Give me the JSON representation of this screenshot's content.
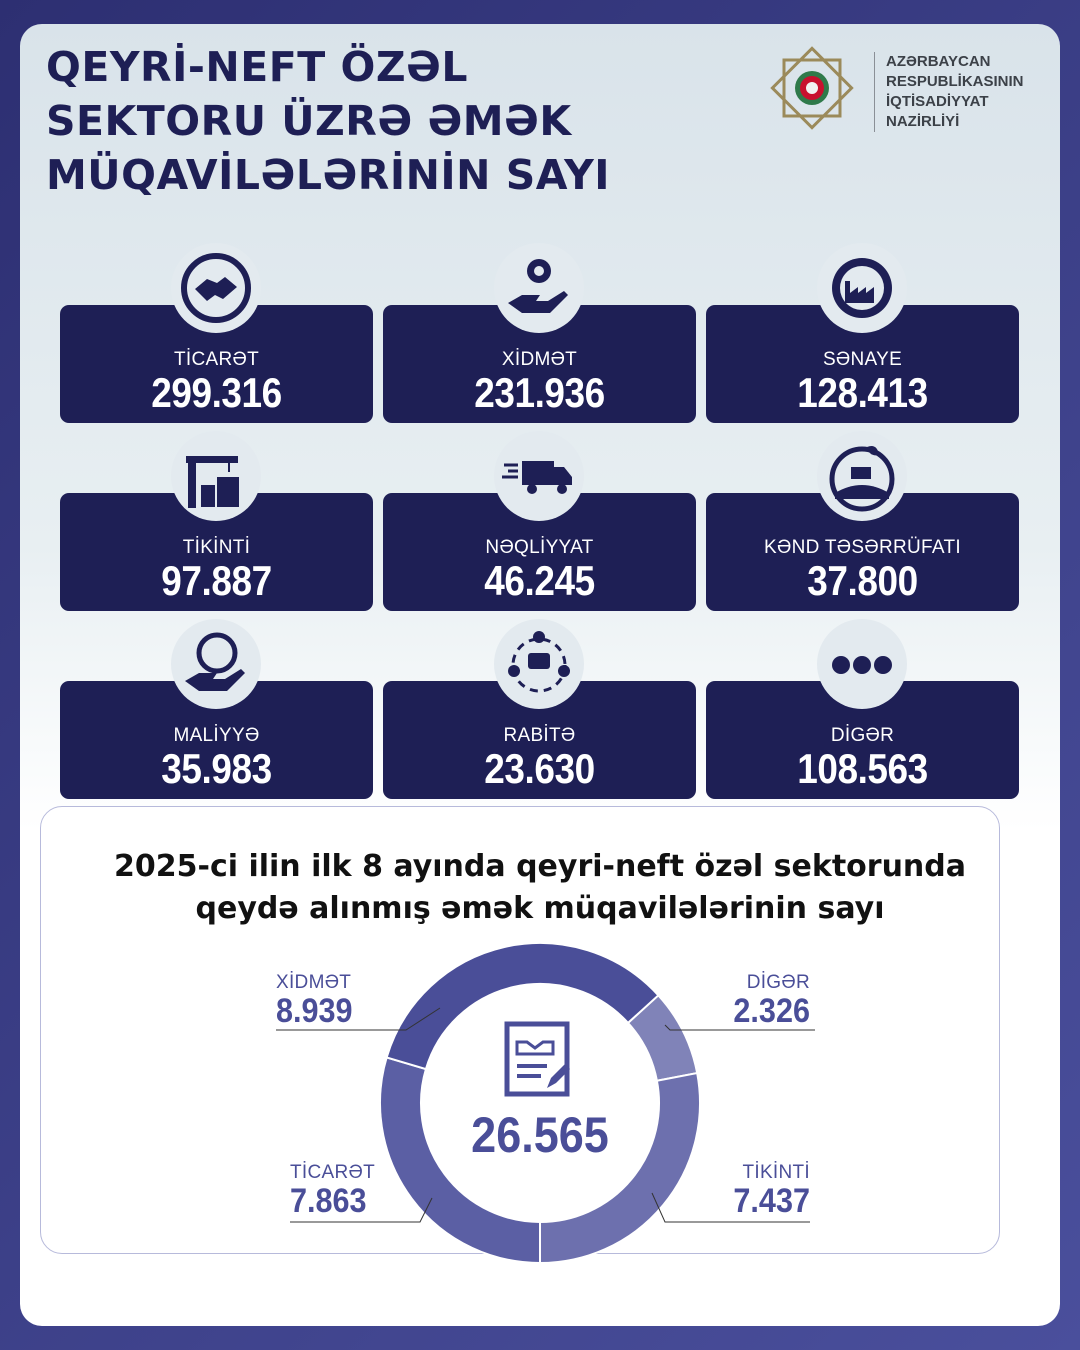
{
  "header": {
    "title_lines": [
      "QEYRİ-NEFT ÖZƏL",
      "SEKTORU ÜZRƏ ƏMƏK",
      "MÜQAVİLƏLƏRİNİN SAYI"
    ]
  },
  "logo": {
    "lines": [
      "AZƏRBAYCAN",
      "RESPUBLİKASININ",
      "İQTİSADİYYAT",
      "NAZİRLİYİ"
    ]
  },
  "sectors": [
    {
      "label": "TİCARƏT",
      "value": "299.316",
      "icon": "handshake-icon"
    },
    {
      "label": "XİDMƏT",
      "value": "231.936",
      "icon": "service-gear-hand-icon"
    },
    {
      "label": "SƏNAYE",
      "value": "128.413",
      "icon": "factory-gear-icon"
    },
    {
      "label": "TİKİNTİ",
      "value": "97.887",
      "icon": "construction-crane-icon"
    },
    {
      "label": "NƏQLİYYAT",
      "value": "46.245",
      "icon": "delivery-truck-icon"
    },
    {
      "label": "KƏND TƏSƏRRÜFATI",
      "value": "37.800",
      "icon": "tractor-field-icon"
    },
    {
      "label": "MALİYYƏ",
      "value": "35.983",
      "icon": "finance-hand-icon"
    },
    {
      "label": "RABİTƏ",
      "value": "23.630",
      "icon": "communication-people-icon"
    },
    {
      "label": "DİGƏR",
      "value": "108.563",
      "icon": "more-dots-icon"
    }
  ],
  "chart_data": {
    "type": "pie",
    "variant": "donut",
    "title": "2025-ci ilin ilk 8 ayında qeyri-neft özəl sektorunda qeydə alınmış əmək müqavilələrinin sayı",
    "title_lines": [
      "2025-ci ilin ilk 8 ayında qeyri-neft özəl sektorunda",
      "qeydə alınmış əmək müqavilələrinin sayı"
    ],
    "total_label": "26.565",
    "total": 26565,
    "center_icon": "contract-handshake-icon",
    "slices": [
      {
        "name": "DİGƏR",
        "label": "2.326",
        "value": 2326,
        "color": "#8083b8"
      },
      {
        "name": "TİKİNTİ",
        "label": "7.437",
        "value": 7437,
        "color": "#6d70ae"
      },
      {
        "name": "TİCARƏT",
        "label": "7.863",
        "value": 7863,
        "color": "#5b5fa4"
      },
      {
        "name": "XİDMƏT",
        "label": "8.939",
        "value": 8939,
        "color": "#4a4e98"
      }
    ]
  },
  "colors": {
    "card": "#1e1f55",
    "accent": "#4a4e98"
  }
}
